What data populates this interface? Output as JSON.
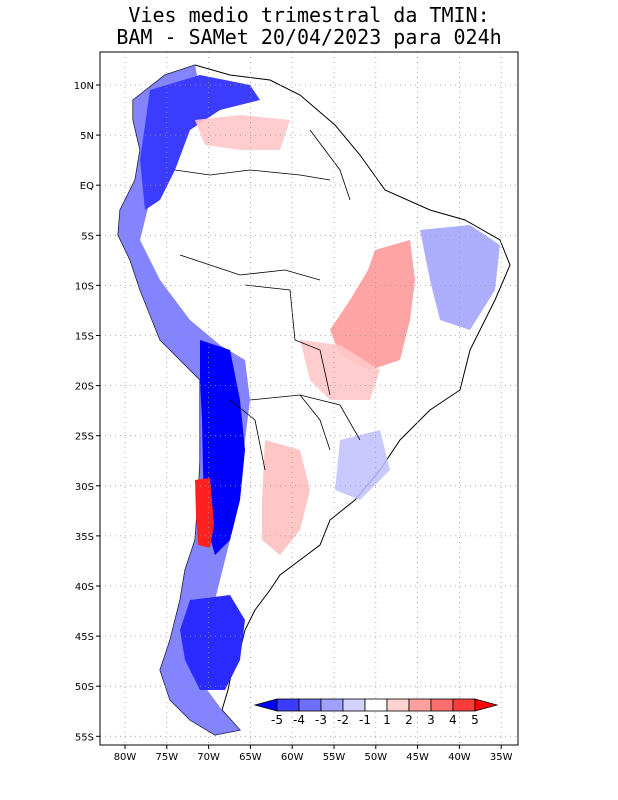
{
  "title_line1": "Vies medio trimestral da TMIN:",
  "title_line2": "BAM - SAMet 20/04/2023  para 024h",
  "lat_labels": [
    "10N",
    "5N",
    "EQ",
    "5S",
    "10S",
    "15S",
    "20S",
    "25S",
    "30S",
    "35S",
    "40S",
    "45S",
    "50S",
    "55S"
  ],
  "lon_labels": [
    "80W",
    "75W",
    "70W",
    "65W",
    "60W",
    "55W",
    "50W",
    "45W",
    "40W",
    "35W"
  ],
  "colorbar": {
    "labels": [
      "-5",
      "-4",
      "-3",
      "-2",
      "-1",
      "1",
      "2",
      "3",
      "4",
      "5"
    ],
    "colors": [
      "#0000ff",
      "#3c3cff",
      "#6e6eff",
      "#a0a0ff",
      "#d2d2ff",
      "#ffffff",
      "#ffd2d2",
      "#ffa0a0",
      "#ff6e6e",
      "#ff3c3c",
      "#ff0000"
    ]
  },
  "colors": {
    "land_outline": "#000000",
    "grid": "#999999"
  }
}
